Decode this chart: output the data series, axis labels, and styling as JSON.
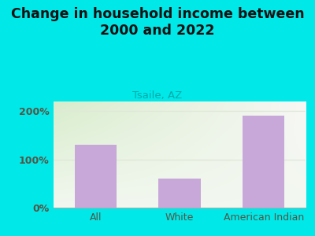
{
  "title": "Change in household income between\n2000 and 2022",
  "subtitle": "Tsaile, AZ",
  "categories": [
    "All",
    "White",
    "American Indian"
  ],
  "values": [
    130,
    60,
    190
  ],
  "bar_color": "#c8a8d8",
  "title_fontsize": 12.5,
  "subtitle_fontsize": 9.5,
  "tick_label_fontsize": 9,
  "axis_label_color": "#555544",
  "subtitle_color": "#00aaaa",
  "title_color": "#111111",
  "background_color": "#00e8e8",
  "plot_bg_color_topleft": "#d8edcc",
  "plot_bg_color_bottomright": "#f5f8f0",
  "ylim": [
    0,
    220
  ],
  "yticks": [
    0,
    100,
    200
  ],
  "ytick_labels": [
    "0%",
    "100%",
    "200%"
  ],
  "grid_color": "#e0e8d8",
  "bar_width": 0.5
}
